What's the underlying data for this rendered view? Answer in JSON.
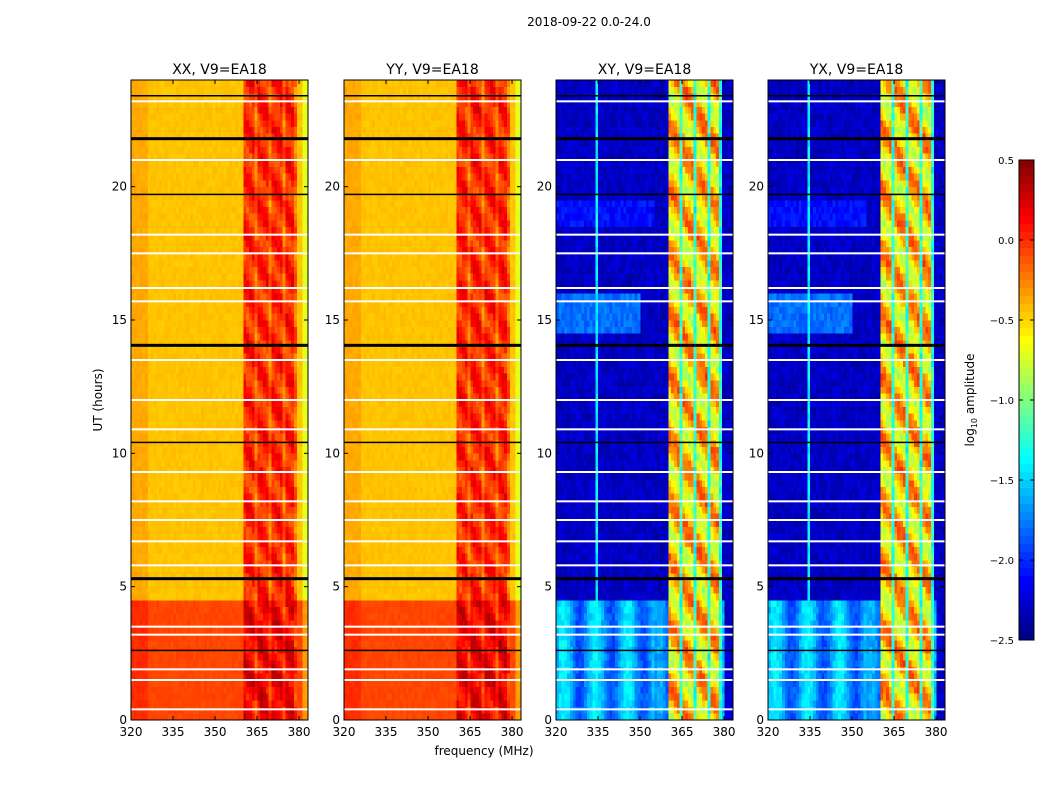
{
  "chart_data": {
    "type": "heatmap",
    "title": "2018-09-22 0.0-24.0",
    "xlabel": "frequency (MHz)",
    "ylabel": "UT (hours)",
    "xlim": [
      320,
      383.2
    ],
    "ylim": [
      0,
      24
    ],
    "xticks": [
      "320",
      "335",
      "350",
      "365",
      "380"
    ],
    "xtick_values": [
      320,
      335,
      350,
      365,
      380
    ],
    "yticks": [
      "0",
      "5",
      "10",
      "15",
      "20"
    ],
    "ytick_values": [
      0,
      5,
      10,
      15,
      20
    ],
    "colorbar": {
      "label": "log10 amplitude",
      "label_main": "log",
      "label_sub": "10",
      "label_rest": " amplitude",
      "range": [
        -2.5,
        0.5
      ],
      "ticks": [
        "0.5",
        "0.0",
        "−0.5",
        "−1.0",
        "−1.5",
        "−2.0",
        "−2.5"
      ],
      "tick_values": [
        0.5,
        0.0,
        -0.5,
        -1.0,
        -1.5,
        -2.0,
        -2.5
      ],
      "colormap": "jet"
    },
    "panels": [
      {
        "title": "XX, V9=EA18",
        "kind": "parallel"
      },
      {
        "title": "YY, V9=EA18",
        "kind": "parallel"
      },
      {
        "title": "XY, V9=EA18",
        "kind": "cross"
      },
      {
        "title": "YX, V9=EA18",
        "kind": "cross"
      }
    ],
    "rfi_band_mhz": [
      360,
      379
    ],
    "flagged_hours_black": [
      2.6,
      5.3,
      10.4,
      14.05,
      19.7,
      21.8,
      23.4
    ],
    "flagged_hours_white": [
      0.4,
      1.5,
      1.9,
      3.2,
      3.5,
      5.8,
      6.7,
      7.5,
      8.2,
      9.3,
      10.9,
      12.0,
      13.5,
      15.7,
      16.2,
      17.5,
      18.2,
      21.0,
      23.2
    ]
  }
}
